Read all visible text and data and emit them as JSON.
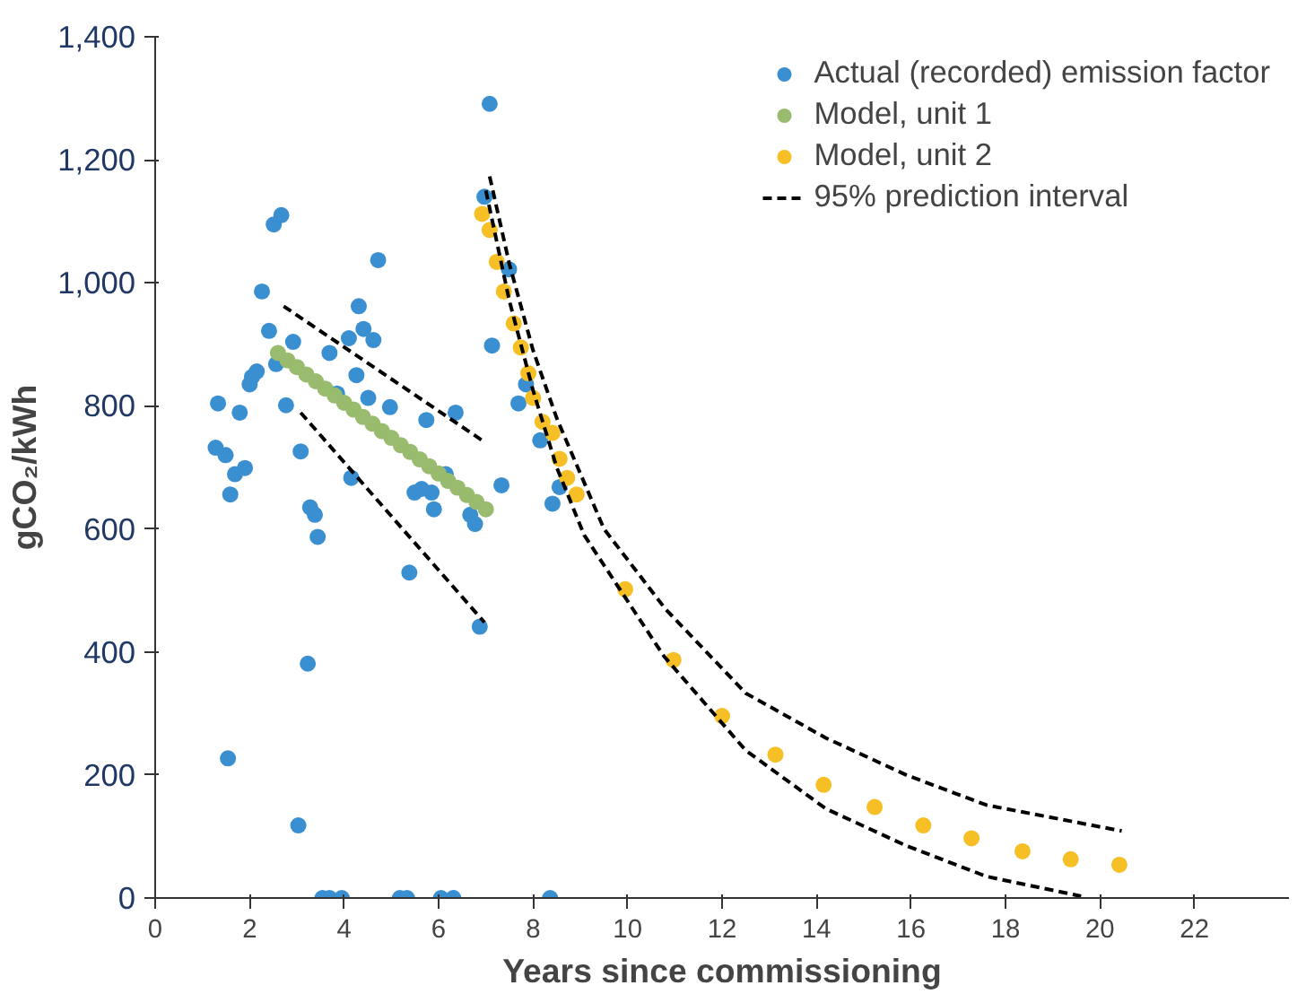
{
  "chart_data": {
    "type": "scatter",
    "xlabel": "Years since commissioning",
    "ylabel": "gCO₂/kWh",
    "xlim": [
      0,
      24
    ],
    "xticks": [
      0,
      2,
      4,
      6,
      8,
      10,
      12,
      14,
      16,
      18,
      20,
      22
    ],
    "ylim": [
      0,
      1400
    ],
    "yticks": [
      0,
      200,
      400,
      600,
      800,
      {
        "value": 1000,
        "label": "1,000"
      },
      {
        "value": 1200,
        "label": "1,200"
      },
      {
        "value": 1400,
        "label": "1,400"
      }
    ],
    "grid": false,
    "legend": "top right",
    "marker": "circle",
    "series": [
      {
        "name": "Actual (recorded) emission factor",
        "color": "#3a8fd0",
        "x": [
          1.33,
          1.28,
          1.49,
          1.59,
          1.69,
          1.9,
          1.79,
          1.54,
          2.0,
          2.05,
          2.15,
          2.26,
          2.41,
          2.51,
          2.67,
          2.56,
          2.77,
          2.92,
          3.08,
          3.03,
          3.23,
          3.28,
          3.38,
          3.44,
          3.69,
          3.85,
          4.1,
          4.15,
          4.31,
          4.41,
          4.62,
          4.72,
          4.26,
          4.51,
          4.97,
          5.38,
          5.49,
          5.64,
          5.85,
          5.9,
          5.74,
          6.15,
          6.36,
          6.67,
          6.77,
          6.87,
          6.97,
          7.13,
          7.33,
          7.49,
          7.69,
          8.15,
          8.41,
          7.08,
          7.85,
          8.56,
          3.54,
          3.69,
          3.95,
          5.18,
          5.33,
          6.05,
          6.31,
          8.36
        ],
        "values": [
          804,
          732,
          720,
          656,
          689,
          699,
          789,
          227,
          835,
          847,
          856,
          986,
          922,
          1095,
          1110,
          868,
          801,
          904,
          726,
          118,
          381,
          635,
          623,
          587,
          886,
          820,
          910,
          683,
          962,
          925,
          907,
          1037,
          850,
          813,
          798,
          529,
          659,
          665,
          659,
          632,
          777,
          689,
          789,
          623,
          608,
          441,
          1140,
          898,
          671,
          1022,
          804,
          744,
          641,
          1291,
          835,
          668,
          0,
          0,
          0,
          0,
          0,
          0,
          0,
          0
        ]
      },
      {
        "name": "Model, unit 1",
        "color": "#98bb6d",
        "x": [
          2.6,
          2.8,
          3.0,
          3.2,
          3.4,
          3.6,
          3.8,
          4.0,
          4.2,
          4.4,
          4.6,
          4.8,
          5.0,
          5.2,
          5.4,
          5.6,
          5.8,
          6.0,
          6.2,
          6.4,
          6.6,
          6.8,
          7.0
        ],
        "values": [
          886,
          874,
          863,
          851,
          840,
          828,
          817,
          805,
          794,
          782,
          771,
          759,
          748,
          736,
          725,
          713,
          702,
          690,
          678,
          667,
          655,
          644,
          632
        ]
      },
      {
        "name": "Model, unit 2",
        "color": "#f5bf25",
        "x": [
          6.92,
          7.08,
          7.23,
          7.38,
          7.59,
          7.74,
          7.9,
          8.0,
          8.2,
          8.41,
          8.56,
          8.72,
          8.92,
          9.95,
          10.97,
          12.0,
          13.13,
          14.15,
          15.23,
          16.26,
          17.28,
          18.36,
          19.38,
          20.41
        ],
        "values": [
          1112,
          1086,
          1034,
          986,
          934,
          895,
          853,
          813,
          774,
          756,
          714,
          683,
          656,
          502,
          387,
          296,
          233,
          184,
          148,
          118,
          97,
          76,
          63,
          54
        ]
      },
      {
        "name": "95% prediction interval",
        "type": "line",
        "line_style": "dashed",
        "marker": "none",
        "color": "#000000",
        "x": [
          2.72,
          6.92
        ],
        "values": [
          962,
          744
        ]
      },
      {
        "type": "line",
        "line_style": "dashed",
        "marker": "none",
        "color": "#000000",
        "x": [
          3.08,
          6.97
        ],
        "values": [
          789,
          448
        ]
      },
      {
        "type": "line",
        "line_style": "dashed",
        "marker": "none",
        "color": "#000000",
        "x": [
          7.08,
          7.5,
          8.0,
          8.5,
          9.0,
          9.5,
          10.8,
          12.5,
          14.2,
          15.9,
          17.6,
          20.46
        ],
        "values": [
          1173,
          1030,
          890,
          780,
          690,
          600,
          470,
          333,
          260,
          200,
          151,
          109
        ]
      },
      {
        "type": "line",
        "line_style": "dashed",
        "marker": "none",
        "color": "#000000",
        "x": [
          7.0,
          7.5,
          8.0,
          8.5,
          9.08,
          10.77,
          12.5,
          14.2,
          15.9,
          17.6,
          19.6
        ],
        "values": [
          1150,
          970,
          825,
          700,
          590,
          393,
          240,
          145,
          85,
          35,
          3
        ]
      }
    ]
  }
}
